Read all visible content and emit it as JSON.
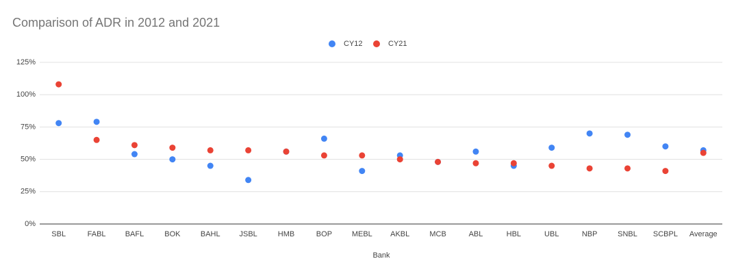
{
  "chart_data": {
    "type": "scatter",
    "title": "Comparison of ADR in 2012 and 2021",
    "x_label": "Bank",
    "categories": [
      "SBL",
      "FABL",
      "BAFL",
      "BOK",
      "BAHL",
      "JSBL",
      "HMB",
      "BOP",
      "MEBL",
      "AKBL",
      "MCB",
      "ABL",
      "HBL",
      "UBL",
      "NBP",
      "SNBL",
      "SCBPL",
      "Average"
    ],
    "series": [
      {
        "name": "CY12",
        "color": "#4285f4",
        "values": [
          78,
          79,
          54,
          50,
          45,
          34,
          56,
          66,
          41,
          53,
          48,
          56,
          45,
          59,
          70,
          69,
          60,
          57
        ]
      },
      {
        "name": "CY21",
        "color": "#ea4335",
        "values": [
          108,
          65,
          61,
          59,
          57,
          57,
          56,
          53,
          53,
          50,
          48,
          47,
          47,
          45,
          43,
          43,
          41,
          55
        ]
      }
    ],
    "ylim": [
      0,
      125
    ],
    "yticks": [
      {
        "value": 0,
        "label": "0%"
      },
      {
        "value": 25,
        "label": "25%"
      },
      {
        "value": 50,
        "label": "50%"
      },
      {
        "value": 75,
        "label": "75%"
      },
      {
        "value": 100,
        "label": "100%"
      },
      {
        "value": 125,
        "label": "125%"
      }
    ],
    "grid": true,
    "legend": "top"
  }
}
